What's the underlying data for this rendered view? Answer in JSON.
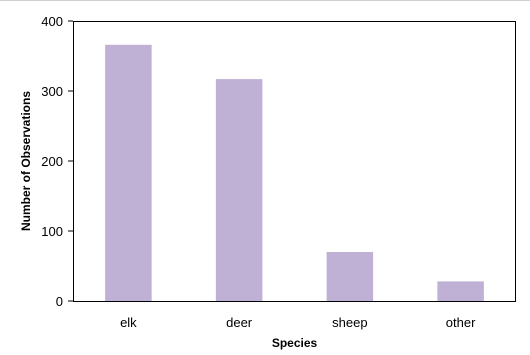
{
  "chart_data": {
    "type": "bar",
    "categories": [
      "elk",
      "deer",
      "sheep",
      "other"
    ],
    "values": [
      366,
      317,
      70,
      28
    ],
    "xlabel": "Species",
    "ylabel": "Number of Observations",
    "ylim": [
      0,
      400
    ],
    "yticks": [
      0,
      100,
      200,
      300,
      400
    ],
    "grid": false,
    "legend": "none",
    "bar_color": "#bfb0d5",
    "axis_color": "#000000"
  }
}
